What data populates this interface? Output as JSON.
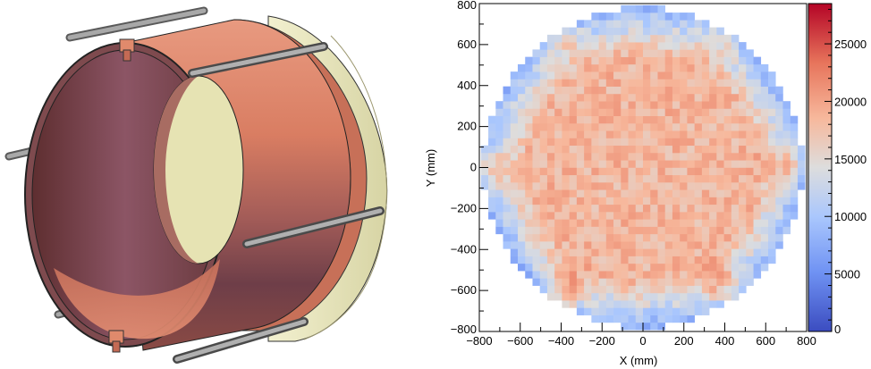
{
  "left_panel": {
    "subject": "copper cylinder assembly with flange and support rods",
    "colors": {
      "copper": "#E0866A",
      "copper_dark": "#6B3A40",
      "end_plate": "#E9E7B9",
      "rod": "#8C8C8C"
    }
  },
  "chart_data": {
    "type": "heatmap",
    "title": "",
    "xlabel": "X (mm)",
    "ylabel": "Y (mm)",
    "xlim": [
      -800,
      800
    ],
    "ylim": [
      -800,
      800
    ],
    "x_ticks": [
      "−800",
      "−600",
      "−400",
      "−200",
      "0",
      "200",
      "400",
      "600",
      "800"
    ],
    "y_ticks": [
      "−800",
      "−600",
      "−400",
      "−200",
      "0",
      "200",
      "400",
      "600",
      "800"
    ],
    "colorbar": {
      "range": [
        0,
        28500
      ],
      "ticks": [
        "0",
        "5000",
        "10000",
        "15000",
        "20000",
        "25000"
      ],
      "palette": "blue-white-red"
    },
    "grid": false,
    "bins": 44,
    "bin_size_mm": 36,
    "circle_radius_mm": 780,
    "center_value_approx": 18500,
    "edge_value_approx": 8000,
    "hotspots": [
      {
        "x": -380,
        "y": -600,
        "value": 27000
      },
      {
        "x": 380,
        "y": -580,
        "value": 25000
      },
      {
        "x": -380,
        "y": 620,
        "value": 23000
      },
      {
        "x": 380,
        "y": 620,
        "value": 23000
      },
      {
        "x": -730,
        "y": 0,
        "value": 25000
      },
      {
        "x": 710,
        "y": 0,
        "value": 25000
      }
    ]
  }
}
